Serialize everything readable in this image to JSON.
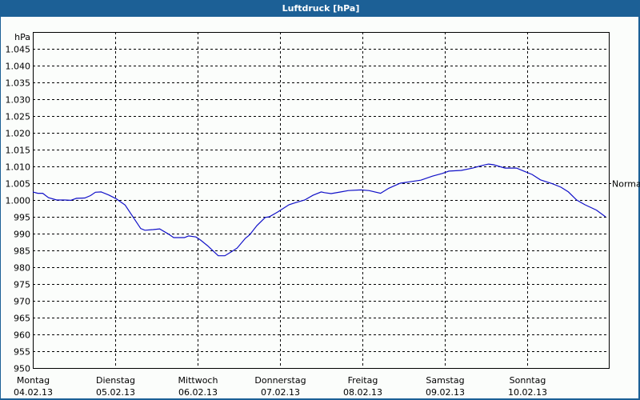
{
  "window": {
    "title": "Luftdruck [hPa]",
    "colors": {
      "titlebar": "#1c6096",
      "background": "#fbfdfb",
      "line": "#1010c8",
      "grid": "#000000"
    }
  },
  "chart_data": {
    "type": "line",
    "title": "Luftdruck [hPa]",
    "xlabel": "",
    "ylabel": "hPa",
    "ylim": [
      950,
      1050
    ],
    "grid": true,
    "y_ticks": [
      950,
      955,
      960,
      965,
      970,
      975,
      980,
      985,
      990,
      995,
      1000,
      1005,
      1010,
      1015,
      1020,
      1025,
      1030,
      1035,
      1040,
      1045
    ],
    "y_tick_labels": [
      "950",
      "955",
      "960",
      "965",
      "970",
      "975",
      "980",
      "985",
      "990",
      "995",
      "1.000",
      "1.005",
      "1.010",
      "1.015",
      "1.020",
      "1.025",
      "1.030",
      "1.035",
      "1.040",
      "1.045"
    ],
    "x_ticks": [
      {
        "day": "Montag",
        "date": "04.02.13",
        "pos": 0
      },
      {
        "day": "Dienstag",
        "date": "05.02.13",
        "pos": 1
      },
      {
        "day": "Mittwoch",
        "date": "06.02.13",
        "pos": 2
      },
      {
        "day": "Donnerstag",
        "date": "07.02.13",
        "pos": 3
      },
      {
        "day": "Freitag",
        "date": "08.02.13",
        "pos": 4
      },
      {
        "day": "Samstag",
        "date": "09.02.13",
        "pos": 5
      },
      {
        "day": "Sonntag",
        "date": "10.02.13",
        "pos": 6
      }
    ],
    "x_range_days": [
      0,
      6.99
    ],
    "reference_line": {
      "label": "Normal",
      "value": 1005
    },
    "series": [
      {
        "name": "Luftdruck",
        "x_days": [
          0.0,
          0.06,
          0.12,
          0.19,
          0.29,
          0.39,
          0.46,
          0.53,
          0.63,
          0.7,
          0.76,
          0.83,
          0.92,
          1.01,
          1.12,
          1.21,
          1.31,
          1.36,
          1.46,
          1.54,
          1.65,
          1.71,
          1.84,
          1.89,
          1.98,
          2.04,
          2.12,
          2.19,
          2.25,
          2.33,
          2.41,
          2.48,
          2.58,
          2.63,
          2.72,
          2.82,
          2.87,
          2.97,
          3.11,
          3.2,
          3.3,
          3.4,
          3.5,
          3.54,
          3.62,
          3.74,
          3.83,
          3.98,
          4.08,
          4.22,
          4.32,
          4.46,
          4.57,
          4.71,
          4.85,
          4.97,
          5.05,
          5.2,
          5.34,
          5.44,
          5.53,
          5.59,
          5.73,
          5.87,
          5.96,
          6.06,
          6.16,
          6.31,
          6.41,
          6.5,
          6.6,
          6.7,
          6.84,
          6.95
        ],
        "values": [
          1002.4,
          1002.0,
          1002.0,
          1000.7,
          1000.0,
          1000.0,
          999.9,
          1000.5,
          1000.6,
          1001.3,
          1002.3,
          1002.4,
          1001.5,
          1000.4,
          998.5,
          995.2,
          991.5,
          991.0,
          991.2,
          991.4,
          989.8,
          988.8,
          988.8,
          989.3,
          989.0,
          988.0,
          986.4,
          984.8,
          983.4,
          983.4,
          984.6,
          985.7,
          988.6,
          989.6,
          992.4,
          994.8,
          995.0,
          996.4,
          998.6,
          999.3,
          1000.0,
          1001.4,
          1002.4,
          1002.2,
          1001.9,
          1002.4,
          1002.8,
          1003.0,
          1002.8,
          1002.0,
          1003.5,
          1005.0,
          1005.4,
          1005.9,
          1007.1,
          1007.9,
          1008.6,
          1008.8,
          1009.5,
          1010.2,
          1010.7,
          1010.5,
          1009.5,
          1009.5,
          1008.6,
          1007.6,
          1006.0,
          1004.8,
          1003.8,
          1002.4,
          1000.0,
          998.6,
          997.0,
          995.0
        ],
        "color": "#1010c8"
      }
    ]
  }
}
